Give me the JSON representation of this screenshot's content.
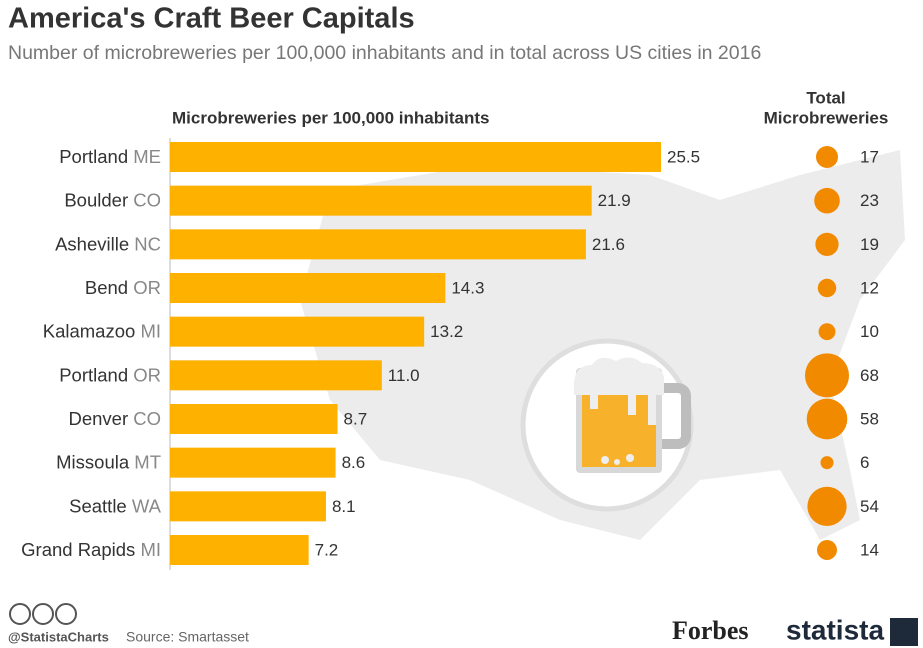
{
  "chart_data": {
    "type": "bar",
    "title": "America's Craft Beer Capitals",
    "subtitle": "Number of microbreweries per 100,000 inhabitants and in total across US cities in 2016",
    "bar_header": "Microbreweries per 100,000 inhabitants",
    "bubble_header": [
      "Total",
      "Microbreweries"
    ],
    "categories": [
      "Portland",
      "Boulder",
      "Asheville",
      "Bend",
      "Kalamazoo",
      "Portland",
      "Denver",
      "Missoula",
      "Seattle",
      "Grand Rapids"
    ],
    "states": [
      "ME",
      "CO",
      "NC",
      "OR",
      "MI",
      "OR",
      "CO",
      "MT",
      "WA",
      "MI"
    ],
    "values": [
      25.5,
      21.9,
      21.6,
      14.3,
      13.2,
      11.0,
      8.7,
      8.6,
      8.1,
      7.2
    ],
    "value_labels": [
      "25.5",
      "21.9",
      "21.6",
      "14.3",
      "13.2",
      "11.0",
      "8.7",
      "8.6",
      "8.1",
      "7.2"
    ],
    "color": "#ffb100",
    "totals": {
      "name": "Total Microbreweries",
      "color": "#f28a00",
      "values": [
        17,
        23,
        19,
        12,
        10,
        68,
        58,
        6,
        54,
        14
      ]
    },
    "handle": "@StatistaCharts",
    "source": "Source: Smartasset",
    "brands": [
      "Forbes",
      "statista"
    ]
  }
}
